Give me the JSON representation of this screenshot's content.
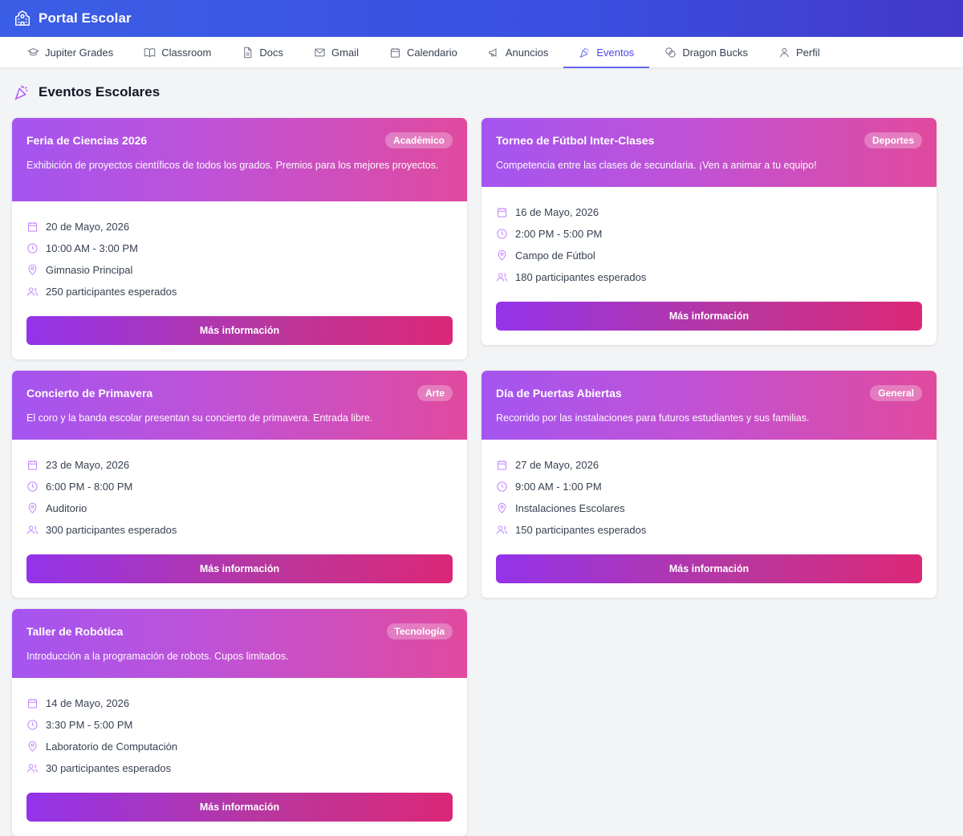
{
  "app": {
    "title": "Portal Escolar"
  },
  "nav": [
    {
      "label": "Jupiter Grades",
      "icon": "graduation-cap-icon"
    },
    {
      "label": "Classroom",
      "icon": "book-open-icon"
    },
    {
      "label": "Docs",
      "icon": "document-icon"
    },
    {
      "label": "Gmail",
      "icon": "mail-icon"
    },
    {
      "label": "Calendario",
      "icon": "calendar-icon"
    },
    {
      "label": "Anuncios",
      "icon": "megaphone-icon"
    },
    {
      "label": "Eventos",
      "icon": "party-popper-icon",
      "active": true
    },
    {
      "label": "Dragon Bucks",
      "icon": "coins-icon"
    },
    {
      "label": "Perfil",
      "icon": "user-icon"
    }
  ],
  "page": {
    "title": "Eventos Escolares"
  },
  "colors": {
    "accent": "#6366f1",
    "card_gradient_start": "#a855f7",
    "card_gradient_end": "#ec4899"
  },
  "events": [
    {
      "title": "Feria de Ciencias 2026",
      "category": "Académico",
      "description": "Exhibición de proyectos científicos de todos los grados. Premios para los mejores proyectos.",
      "date": "20 de Mayo, 2026",
      "time": "10:00 AM - 3:00 PM",
      "location": "Gimnasio Principal",
      "participants": "250 participantes esperados",
      "button": "Más información"
    },
    {
      "title": "Torneo de Fútbol Inter-Clases",
      "category": "Deportes",
      "description": "Competencia entre las clases de secundaria. ¡Ven a animar a tu equipo!",
      "date": "16 de Mayo, 2026",
      "time": "2:00 PM - 5:00 PM",
      "location": "Campo de Fútbol",
      "participants": "180 participantes esperados",
      "button": "Más información"
    },
    {
      "title": "Concierto de Primavera",
      "category": "Arte",
      "description": "El coro y la banda escolar presentan su concierto de primavera. Entrada libre.",
      "date": "23 de Mayo, 2026",
      "time": "6:00 PM - 8:00 PM",
      "location": "Auditorio",
      "participants": "300 participantes esperados",
      "button": "Más información"
    },
    {
      "title": "Día de Puertas Abiertas",
      "category": "General",
      "description": "Recorrido por las instalaciones para futuros estudiantes y sus familias.",
      "date": "27 de Mayo, 2026",
      "time": "9:00 AM - 1:00 PM",
      "location": "Instalaciones Escolares",
      "participants": "150 participantes esperados",
      "button": "Más información"
    },
    {
      "title": "Taller de Robótica",
      "category": "Tecnología",
      "description": "Introducción a la programación de robots. Cupos limitados.",
      "date": "14 de Mayo, 2026",
      "time": "3:30 PM - 5:00 PM",
      "location": "Laboratorio de Computación",
      "participants": "30 participantes esperados",
      "button": "Más información"
    }
  ]
}
